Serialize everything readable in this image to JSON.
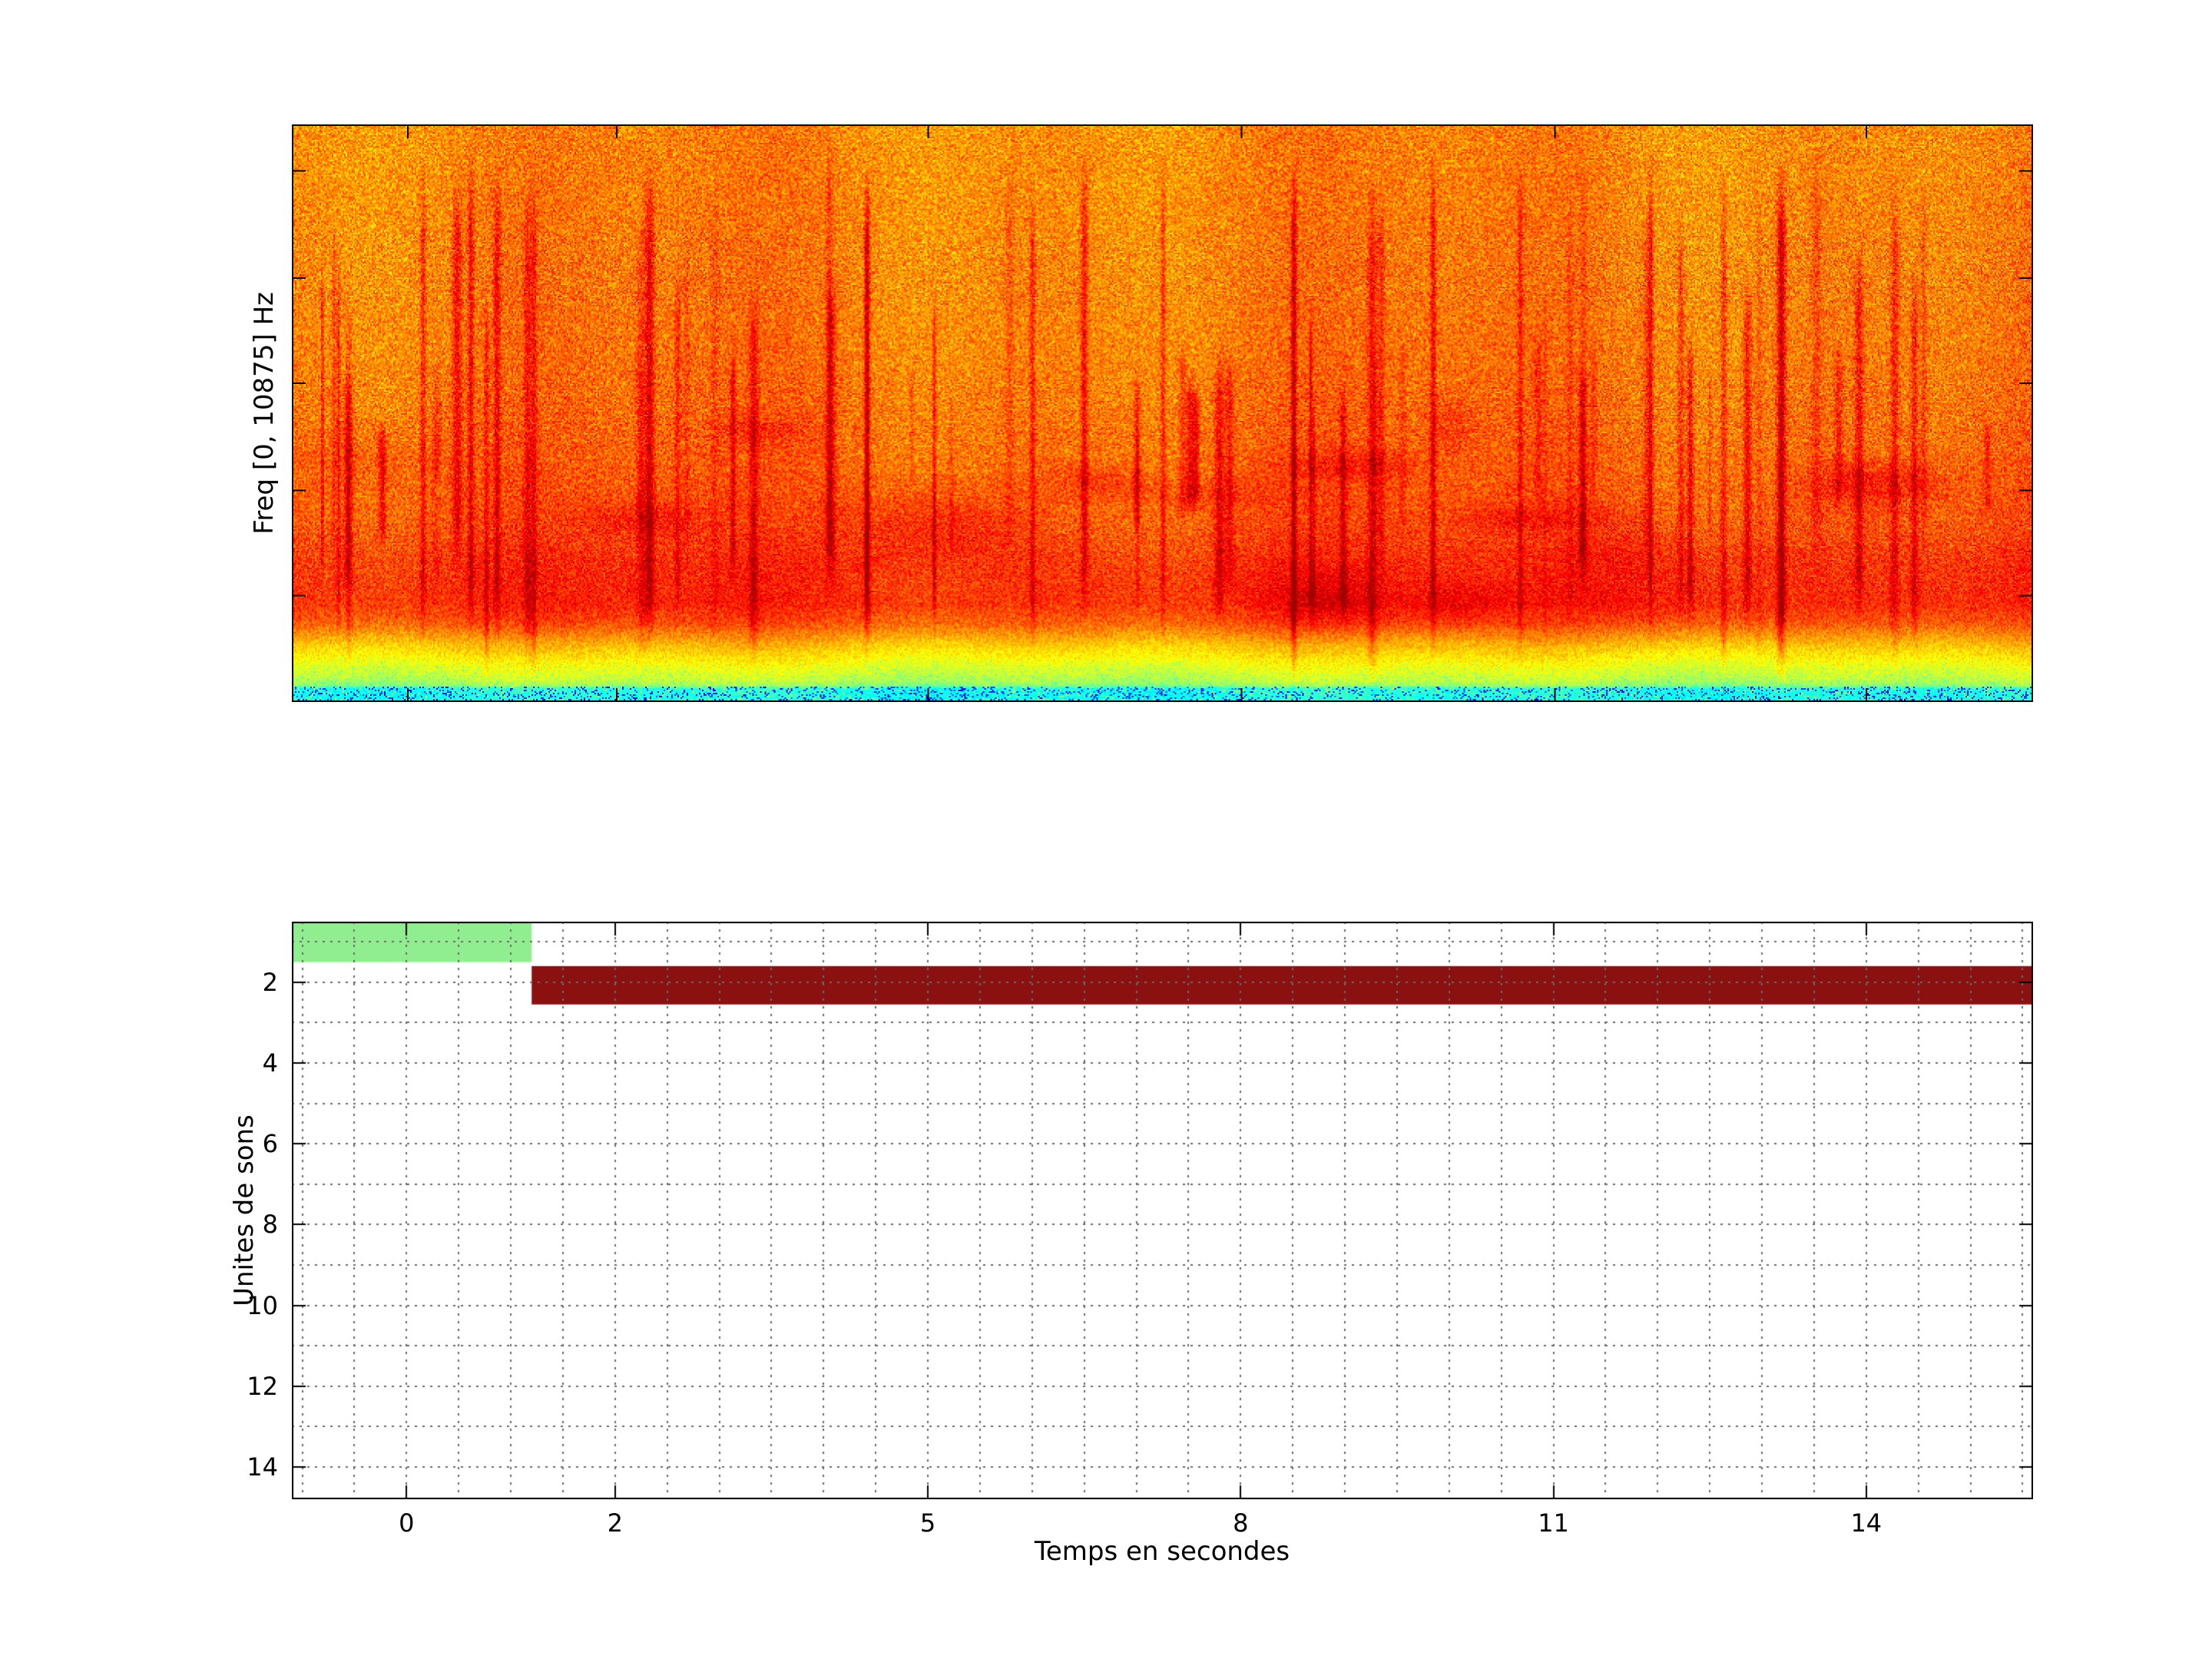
{
  "page": {
    "background": "#ffffff"
  },
  "chart_data": [
    {
      "type": "heatmap",
      "name": "spectrogram",
      "title": "",
      "xlabel": "",
      "ylabel": "Freq [0, 10875] Hz",
      "freq_range_hz": [
        0,
        10875
      ],
      "colormap": "jet",
      "yticks_hz": [
        0,
        2000,
        4000,
        6000,
        8000,
        10000
      ],
      "description": "Dense audio spectrogram: orange-red noise across the full band, darker red vertical transients, a darker red horizontal band at low frequencies, a yellow-green speckled band below it, and a cyan strip at the lowest frequencies.",
      "render": {
        "seed": 20,
        "cols": 1134,
        "rows": 378,
        "minor_streak_count": 60,
        "blob_count": 14,
        "major_streaks": [
          [
            0.075,
            0.1
          ],
          [
            0.135,
            0.09
          ],
          [
            0.205,
            0.1
          ],
          [
            0.33,
            0.2
          ],
          [
            0.425,
            0.1
          ],
          [
            0.5,
            0.09
          ],
          [
            0.575,
            0.16
          ],
          [
            0.62,
            0.1
          ],
          [
            0.655,
            0.12
          ],
          [
            0.705,
            0.09
          ],
          [
            0.78,
            0.1
          ],
          [
            0.855,
            0.18
          ],
          [
            0.92,
            0.09
          ]
        ],
        "profile": [
          [
            0.0,
            0.75,
            0.1
          ],
          [
            0.4,
            0.765,
            0.1
          ],
          [
            0.55,
            0.78,
            0.095
          ],
          [
            0.7,
            0.805,
            0.09
          ],
          [
            0.76,
            0.835,
            0.085
          ],
          [
            0.83,
            0.845,
            0.08
          ],
          [
            0.865,
            0.8,
            0.075
          ],
          [
            0.9,
            0.7,
            0.06
          ],
          [
            0.935,
            0.625,
            0.06
          ],
          [
            0.965,
            0.565,
            0.065
          ],
          [
            0.974,
            0.52,
            0.06
          ],
          [
            0.978,
            0.41,
            0.055
          ],
          [
            1.0,
            0.405,
            0.06
          ]
        ]
      }
    },
    {
      "type": "bar",
      "name": "units-timeline",
      "title": "",
      "xlabel": "Temps en secondes",
      "ylabel": "Unites de sons",
      "xlim": [
        -1.1,
        15.6
      ],
      "ylim": [
        0.5,
        14.8
      ],
      "y_reversed": true,
      "xticks": [
        0,
        2,
        5,
        8,
        11,
        14
      ],
      "yticks": [
        2,
        4,
        6,
        8,
        10,
        12,
        14
      ],
      "grid": {
        "style": "dotted",
        "color": "#6a6a6a",
        "x_spacing": 0.5,
        "y_spacing": 1
      },
      "segments": [
        {
          "name": "son-1",
          "y_top": 0.5,
          "y_bottom": 1.5,
          "x_start": -1.1,
          "x_end": 1.2,
          "color": "#90EE90"
        },
        {
          "name": "son-2",
          "y_top": 1.6,
          "y_bottom": 2.55,
          "x_start": 1.2,
          "x_end": 15.6,
          "color": "#8B1010"
        }
      ]
    }
  ]
}
